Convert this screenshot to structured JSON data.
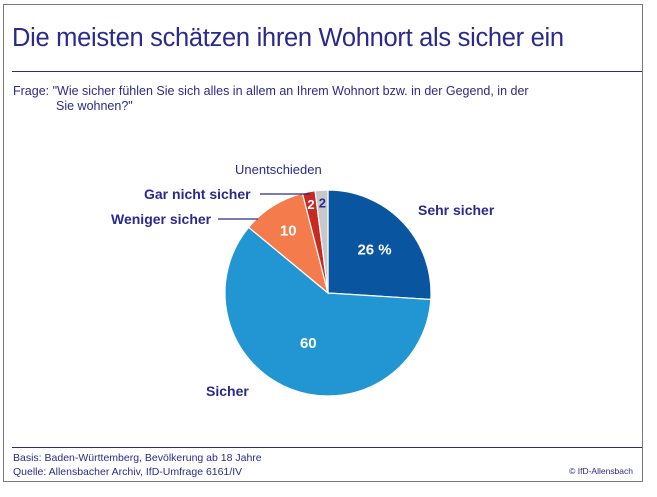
{
  "header": {
    "title": "Die meisten schätzen ihren Wohnort als sicher ein",
    "question_line1": "Frage: \"Wie sicher fühlen Sie sich alles in allem an Ihrem Wohnort bzw. in der Gegend, in der",
    "question_line2": "Sie wohnen?\""
  },
  "footer": {
    "basis": "Basis: Baden-Württemberg, Bevölkerung ab 18 Jahre",
    "source": "Quelle: Allensbacher Archiv, IfD-Umfrage 6161/IV",
    "copyright": "© IfD-Allensbach"
  },
  "colors": {
    "text": "#2b2a8c",
    "rule": "#2b2a8c",
    "frame": "#7a7a7a"
  },
  "chart_data": {
    "type": "pie",
    "title": "Die meisten schätzen ihren Wohnort als sicher ein",
    "unit": "%",
    "start_angle_deg": 0,
    "direction": "clockwise",
    "slices": [
      {
        "label": "Sehr sicher",
        "value": 26,
        "value_label": "26 %",
        "color": "#0a55a0",
        "value_text_color": "#ffffff"
      },
      {
        "label": "Sicher",
        "value": 60,
        "value_label": "60",
        "color": "#2196d3",
        "value_text_color": "#ffffff"
      },
      {
        "label": "Weniger sicher",
        "value": 10,
        "value_label": "10",
        "color": "#f47c4c",
        "value_text_color": "#ffffff"
      },
      {
        "label": "Gar nicht sicher",
        "value": 2,
        "value_label": "2",
        "color": "#c62a22",
        "value_text_color": "#ffffff"
      },
      {
        "label": "Unentschieden",
        "value": 2,
        "value_label": "2",
        "color": "#c8c8c8",
        "value_text_color": "#2b2a8c"
      }
    ],
    "legend": "none (direct labels)"
  }
}
